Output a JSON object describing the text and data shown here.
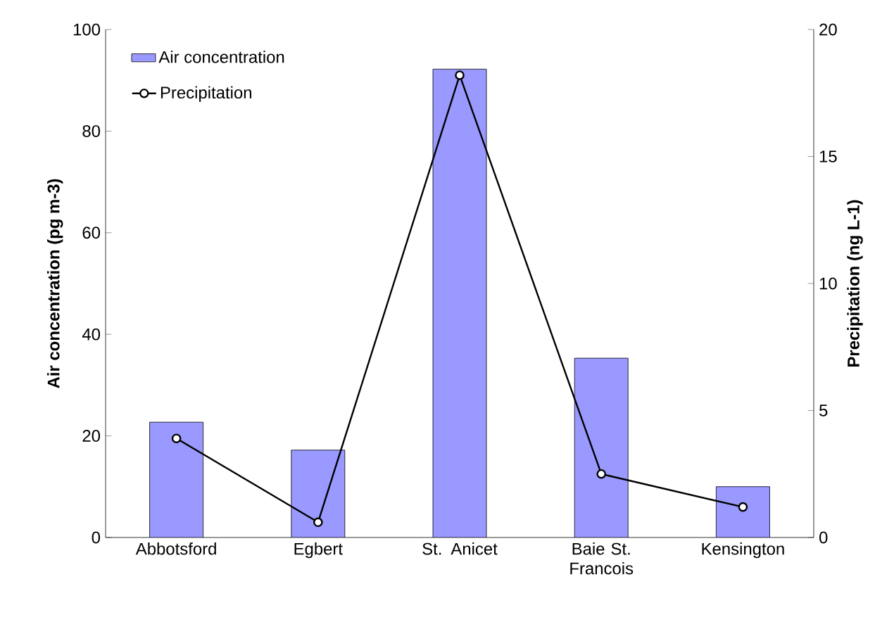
{
  "chart_data": {
    "type": "bar",
    "categories": [
      "Abbotsford",
      "Egbert",
      "St. Anicet",
      "Baie St. Francois",
      "Kensington"
    ],
    "series": [
      {
        "name": "Air concentration",
        "color": "#9999ff",
        "values": [
          22.7,
          17.2,
          92.2,
          35.3,
          10.0
        ]
      },
      {
        "name": "Precipitation",
        "type": "line",
        "axis": "y2",
        "color": "#000000",
        "marker": "circle",
        "values": [
          3.9,
          0.6,
          18.2,
          2.5,
          1.2
        ]
      }
    ],
    "ylabel": "Air concentration (pg m-3)",
    "y2label": "Precipitation (ng L-1)",
    "ylim": [
      0,
      100
    ],
    "yticks": [
      0,
      20,
      40,
      60,
      80,
      100
    ],
    "y2lim": [
      0,
      20
    ],
    "y2ticks": [
      0,
      5,
      10,
      15,
      20
    ],
    "legend": "top left",
    "grid": false
  }
}
